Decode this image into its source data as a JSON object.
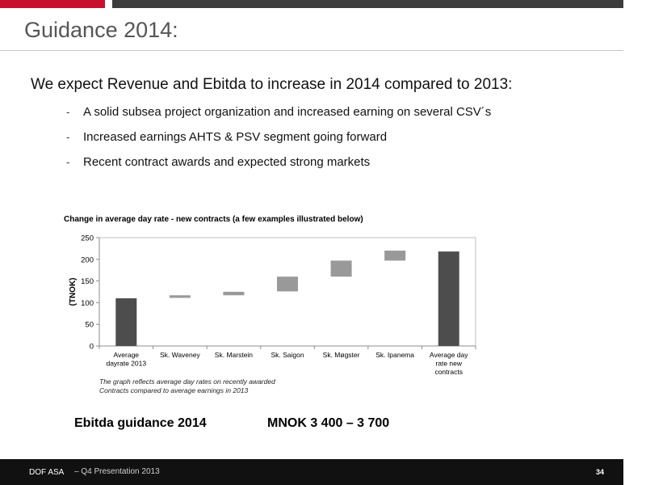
{
  "slide": {
    "title": "Guidance 2014:",
    "headline": "We expect Revenue and Ebitda to increase in 2014 compared to 2013:",
    "bullets": [
      "A solid subsea project organization and increased earning on several CSV´s",
      "Increased earnings AHTS & PSV segment going forward",
      "Recent contract awards and expected strong markets"
    ],
    "bullet_marker": "-",
    "note_lines": [
      "The graph reflects average day rates on recently awarded",
      "Contracts compared to average earnings in 2013"
    ],
    "guidance_label": "Ebitda guidance 2014",
    "guidance_value": "MNOK  3 400 – 3 700"
  },
  "footer": {
    "company": "DOF ASA",
    "presentation": "– Q4 Presentation 2013",
    "page": "34"
  },
  "colors": {
    "accent_red": "#c8102e",
    "bar_total": "#4d4d4d",
    "bar_step": "#999999"
  },
  "chart_data": {
    "type": "bar",
    "subtype": "waterfall",
    "title": "Change in average day rate - new contracts (a few examples illustrated below)",
    "ylabel": "(TNOK)",
    "xlabel": "",
    "ylim": [
      0,
      250
    ],
    "yticks": [
      0,
      50,
      100,
      150,
      200,
      250
    ],
    "grid": false,
    "categories": [
      [
        "Average",
        "dayrate 2013"
      ],
      [
        "Sk. Waveney"
      ],
      [
        "Sk. Marstein"
      ],
      [
        "Sk. Saigon"
      ],
      [
        "Sk. Møgster"
      ],
      [
        "Sk. Ipanema"
      ],
      [
        "Average day",
        "rate new",
        "contracts"
      ]
    ],
    "bars": [
      {
        "kind": "total",
        "start": 0,
        "end": 110
      },
      {
        "kind": "step",
        "start": 111,
        "end": 117
      },
      {
        "kind": "step",
        "start": 117,
        "end": 125
      },
      {
        "kind": "step",
        "start": 126,
        "end": 160
      },
      {
        "kind": "step",
        "start": 160,
        "end": 197
      },
      {
        "kind": "step",
        "start": 197,
        "end": 220
      },
      {
        "kind": "total",
        "start": 0,
        "end": 218
      }
    ]
  }
}
